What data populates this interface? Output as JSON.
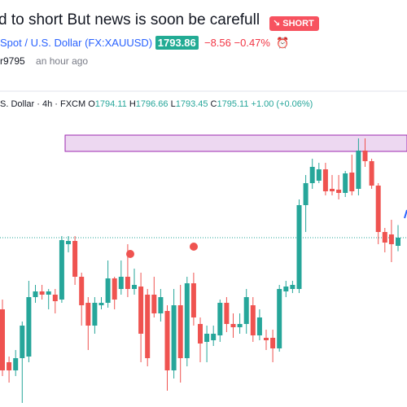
{
  "header": {
    "title": "d to short But news is soon be carefull",
    "badge": "SHORT",
    "symbol": "Spot / U.S. Dollar",
    "ticker": "(FX:XAUUSD)",
    "price": "1793.86",
    "change": "−8.56",
    "change_pct": "−0.47%",
    "author": "r9795",
    "time": "an hour ago"
  },
  "legend": {
    "symbol": "S. Dollar",
    "interval": "4h",
    "source": "FXCM",
    "ohlc": [
      {
        "label": "O",
        "value": "1794.11"
      },
      {
        "label": "H",
        "value": "1796.66"
      },
      {
        "label": "L",
        "value": "1793.45"
      },
      {
        "label": "C",
        "value": "1795.11"
      }
    ],
    "change": "+1.00 (+0.06%)"
  },
  "chart_data": {
    "type": "candlestick",
    "up_color": "#26a69a",
    "down_color": "#ef5350",
    "ylim": [
      1774.31,
      1813.11
    ],
    "open": [
      1786.31,
      1779.81,
      1778.81,
      1780.31,
      1780.51,
      1787.81,
      1788.51,
      1788.11,
      1788.11,
      1787.51,
      1794.31,
      1794.71,
      1790.31,
      1787.11,
      1784.31,
      1786.81,
      1787.11,
      1790.11,
      1788.81,
      1790.31,
      1788.81,
      1789.11,
      1788.11,
      1788.11,
      1785.81,
      1786.11,
      1778.81,
      1786.81,
      1780.31,
      1789.51,
      1784.51,
      1782.31,
      1782.51,
      1783.11,
      1787.11,
      1784.51,
      1784.11,
      1784.51,
      1786.81,
      1783.11,
      1782.81,
      1782.81,
      1781.51,
      1788.51,
      1788.81,
      1788.81,
      1799.11,
      1801.81,
      1802.11,
      1803.51,
      1801.11,
      1801.01,
      1800.61,
      1803.11,
      1801.11,
      1805.81,
      1804.51,
      1801.51,
      1795.81,
      1795.51,
      1794.11
    ],
    "high": [
      1787.51,
      1780.51,
      1781.31,
      1784.81,
      1789.81,
      1789.31,
      1789.31,
      1788.81,
      1788.81,
      1795.31,
      1795.31,
      1795.31,
      1790.81,
      1787.81,
      1787.81,
      1787.81,
      1792.31,
      1790.31,
      1792.31,
      1794.31,
      1791.31,
      1790.81,
      1788.81,
      1790.31,
      1788.81,
      1786.81,
      1788.81,
      1789.31,
      1790.31,
      1790.81,
      1785.31,
      1784.31,
      1784.31,
      1787.51,
      1787.81,
      1785.81,
      1785.81,
      1788.81,
      1787.81,
      1786.31,
      1783.81,
      1783.81,
      1789.31,
      1789.81,
      1789.81,
      1799.81,
      1802.81,
      1804.81,
      1804.31,
      1804.31,
      1802.81,
      1802.81,
      1803.31,
      1805.31,
      1807.31,
      1807.31,
      1804.81,
      1801.81,
      1796.31,
      1797.31,
      1796.66
    ],
    "low": [
      1778.11,
      1777.31,
      1778.11,
      1774.81,
      1779.81,
      1787.11,
      1787.51,
      1786.31,
      1785.81,
      1787.11,
      1793.31,
      1789.31,
      1784.31,
      1781.31,
      1783.31,
      1786.31,
      1786.51,
      1786.31,
      1788.11,
      1787.81,
      1788.11,
      1779.81,
      1779.31,
      1785.31,
      1784.81,
      1776.31,
      1777.81,
      1777.31,
      1779.31,
      1784.31,
      1779.81,
      1779.81,
      1781.81,
      1782.31,
      1783.51,
      1782.81,
      1783.31,
      1783.31,
      1782.31,
      1782.51,
      1781.31,
      1779.81,
      1781.11,
      1787.81,
      1788.31,
      1788.31,
      1795.81,
      1801.11,
      1801.81,
      1800.31,
      1800.31,
      1799.81,
      1800.11,
      1800.31,
      1800.31,
      1803.81,
      1801.11,
      1794.31,
      1793.31,
      1792.11,
      1793.45
    ],
    "close": [
      1778.81,
      1778.81,
      1780.31,
      1784.31,
      1787.81,
      1788.51,
      1788.11,
      1788.51,
      1787.31,
      1794.81,
      1794.71,
      1790.31,
      1786.81,
      1784.31,
      1787.11,
      1787.11,
      1790.11,
      1787.51,
      1790.31,
      1788.81,
      1789.31,
      1783.31,
      1780.31,
      1785.81,
      1787.81,
      1778.81,
      1786.81,
      1780.31,
      1789.51,
      1785.31,
      1782.11,
      1783.31,
      1783.31,
      1787.11,
      1784.51,
      1784.11,
      1784.51,
      1787.81,
      1783.11,
      1785.31,
      1782.51,
      1781.51,
      1788.81,
      1789.11,
      1789.31,
      1799.11,
      1801.81,
      1803.81,
      1803.51,
      1800.81,
      1800.81,
      1800.61,
      1803.01,
      1800.81,
      1805.81,
      1804.51,
      1801.51,
      1795.81,
      1794.51,
      1794.31,
      1795.11
    ]
  }
}
